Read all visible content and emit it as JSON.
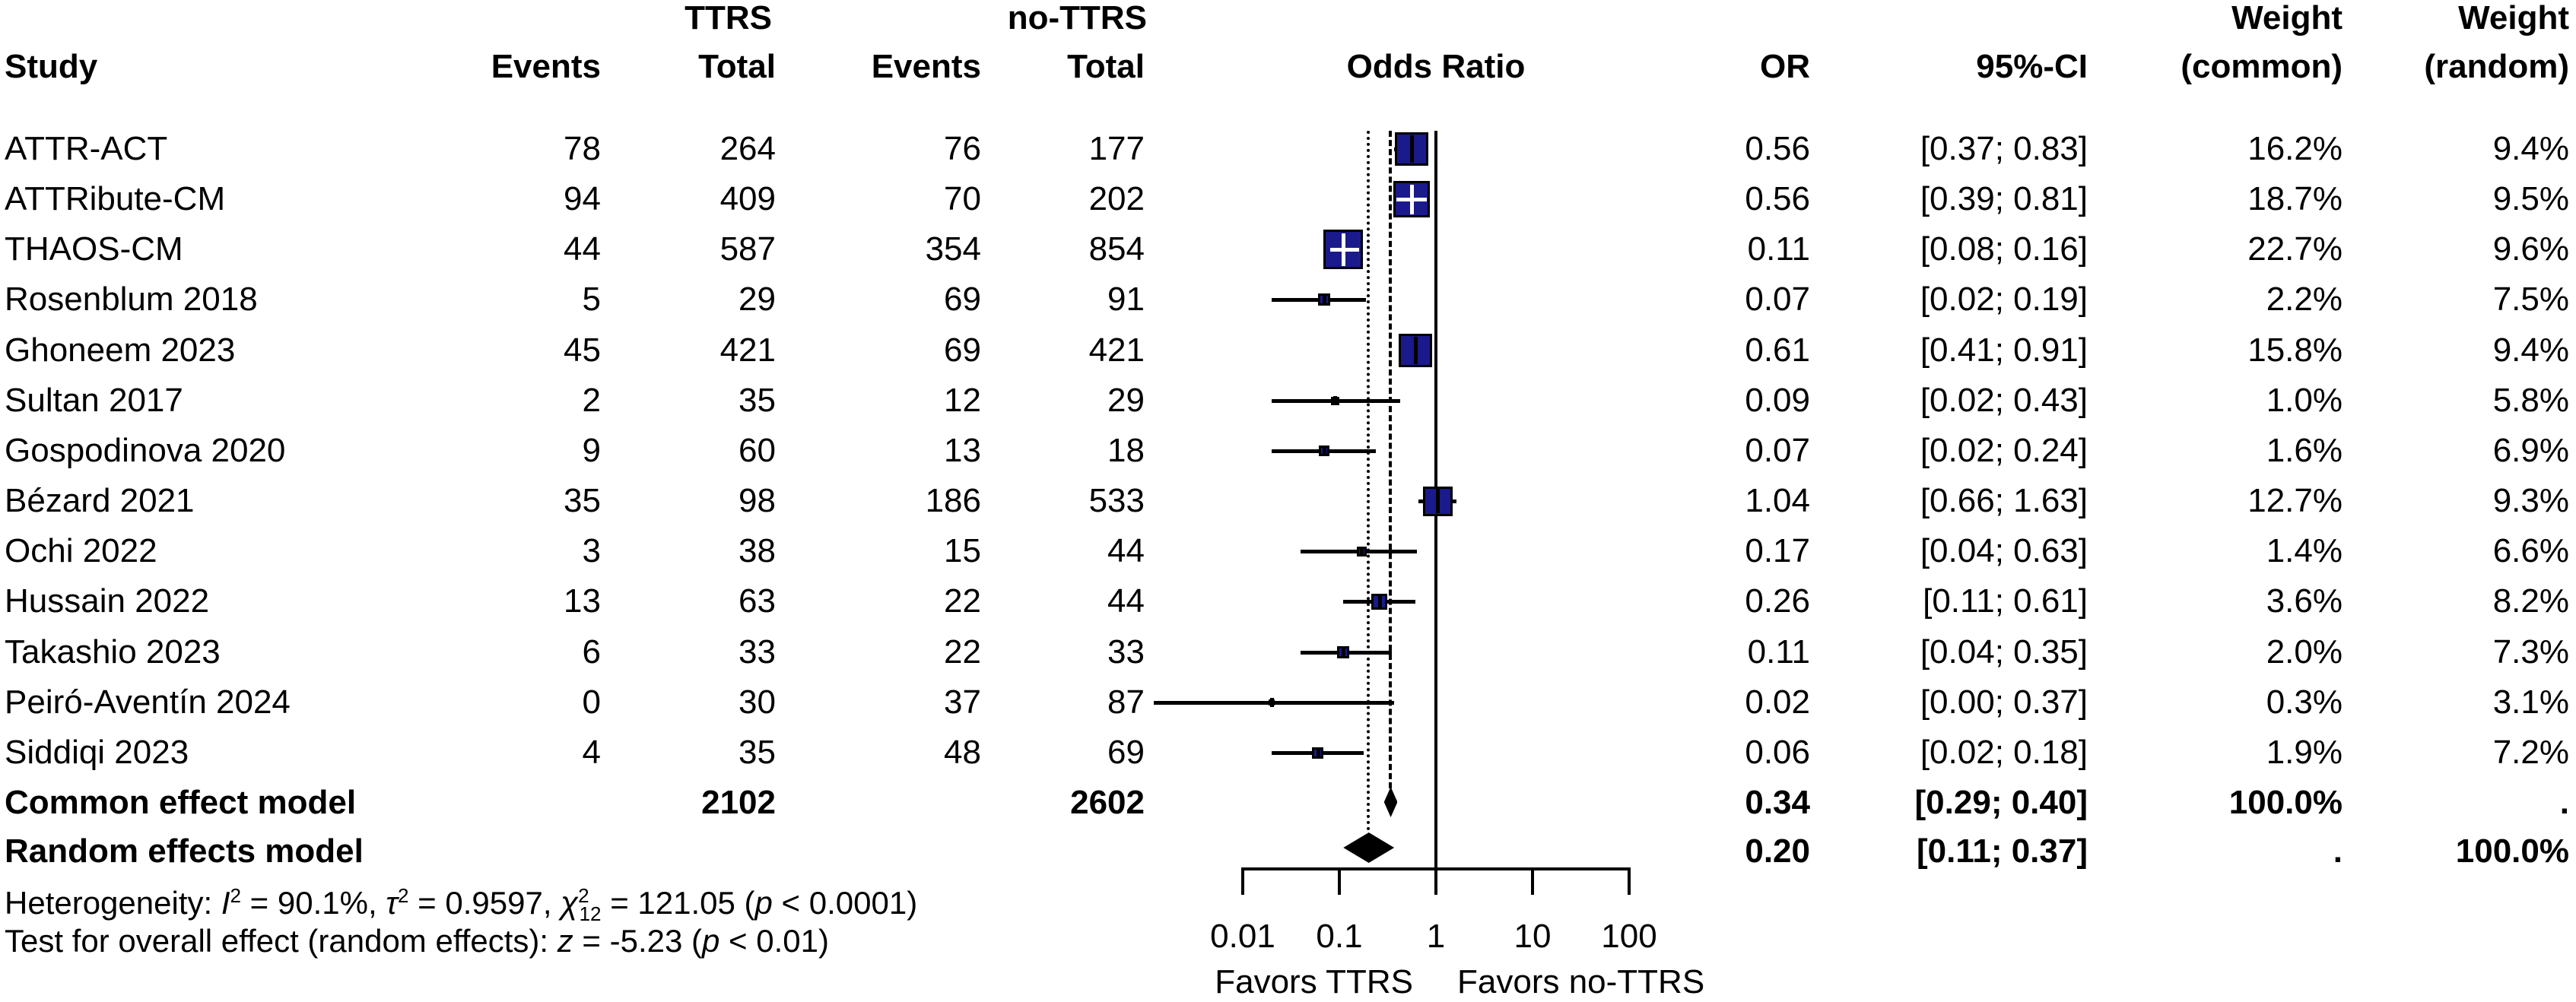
{
  "header": {
    "group_ttrs": "TTRS",
    "group_nottrs": "no-TTRS",
    "study": "Study",
    "events1": "Events",
    "total1": "Total",
    "events2": "Events",
    "total2": "Total",
    "odds_ratio_plot": "Odds Ratio",
    "or": "OR",
    "ci": "95%-CI",
    "weight_common_top": "Weight",
    "weight_random_top": "Weight",
    "weight_common_sub": "(common)",
    "weight_random_sub": "(random)"
  },
  "chart_data": {
    "type": "forest",
    "scale": "log10",
    "marker_color": "#1a1a8c",
    "axis": {
      "ticks": [
        0.01,
        0.1,
        1,
        10,
        100
      ],
      "tick_labels": [
        "0.01",
        "0.1",
        "1",
        "10",
        "100"
      ],
      "favors_left": "Favors TTRS",
      "favors_right": "Favors no-TTRS"
    },
    "guide_lines": {
      "solid_at": 1,
      "dashed_at": 0.34,
      "dotted_at": 0.2
    },
    "studies": [
      {
        "study": "ATTR-ACT",
        "events1": "78",
        "total1": "264",
        "events2": "76",
        "total2": "177",
        "or": 0.56,
        "lo": 0.37,
        "hi": 0.83,
        "or_text": "0.56",
        "ci_text": "[0.37; 0.83]",
        "weight_common": "16.2%",
        "weight_random": "9.4%",
        "weight_common_pct": 16.2
      },
      {
        "study": "ATTRibute-CM",
        "events1": "94",
        "total1": "409",
        "events2": "70",
        "total2": "202",
        "or": 0.56,
        "lo": 0.39,
        "hi": 0.81,
        "or_text": "0.56",
        "ci_text": "[0.39; 0.81]",
        "weight_common": "18.7%",
        "weight_random": "9.5%",
        "weight_common_pct": 18.7
      },
      {
        "study": "THAOS-CM",
        "events1": "44",
        "total1": "587",
        "events2": "354",
        "total2": "854",
        "or": 0.11,
        "lo": 0.08,
        "hi": 0.16,
        "or_text": "0.11",
        "ci_text": "[0.08; 0.16]",
        "weight_common": "22.7%",
        "weight_random": "9.6%",
        "weight_common_pct": 22.7
      },
      {
        "study": "Rosenblum 2018",
        "events1": "5",
        "total1": "29",
        "events2": "69",
        "total2": "91",
        "or": 0.07,
        "lo": 0.02,
        "hi": 0.19,
        "or_text": "0.07",
        "ci_text": "[0.02; 0.19]",
        "weight_common": "2.2%",
        "weight_random": "7.5%",
        "weight_common_pct": 2.2
      },
      {
        "study": "Ghoneem 2023",
        "events1": "45",
        "total1": "421",
        "events2": "69",
        "total2": "421",
        "or": 0.61,
        "lo": 0.41,
        "hi": 0.91,
        "or_text": "0.61",
        "ci_text": "[0.41; 0.91]",
        "weight_common": "15.8%",
        "weight_random": "9.4%",
        "weight_common_pct": 15.8
      },
      {
        "study": "Sultan 2017",
        "events1": "2",
        "total1": "35",
        "events2": "12",
        "total2": "29",
        "or": 0.09,
        "lo": 0.02,
        "hi": 0.43,
        "or_text": "0.09",
        "ci_text": "[0.02; 0.43]",
        "weight_common": "1.0%",
        "weight_random": "5.8%",
        "weight_common_pct": 1.0
      },
      {
        "study": "Gospodinova 2020",
        "events1": "9",
        "total1": "60",
        "events2": "13",
        "total2": "18",
        "or": 0.07,
        "lo": 0.02,
        "hi": 0.24,
        "or_text": "0.07",
        "ci_text": "[0.02; 0.24]",
        "weight_common": "1.6%",
        "weight_random": "6.9%",
        "weight_common_pct": 1.6
      },
      {
        "study": "Bézard 2021",
        "events1": "35",
        "total1": "98",
        "events2": "186",
        "total2": "533",
        "or": 1.04,
        "lo": 0.66,
        "hi": 1.63,
        "or_text": "1.04",
        "ci_text": "[0.66; 1.63]",
        "weight_common": "12.7%",
        "weight_random": "9.3%",
        "weight_common_pct": 12.7
      },
      {
        "study": "Ochi 2022",
        "events1": "3",
        "total1": "38",
        "events2": "15",
        "total2": "44",
        "or": 0.17,
        "lo": 0.04,
        "hi": 0.63,
        "or_text": "0.17",
        "ci_text": "[0.04; 0.63]",
        "weight_common": "1.4%",
        "weight_random": "6.6%",
        "weight_common_pct": 1.4
      },
      {
        "study": "Hussain 2022",
        "events1": "13",
        "total1": "63",
        "events2": "22",
        "total2": "44",
        "or": 0.26,
        "lo": 0.11,
        "hi": 0.61,
        "or_text": "0.26",
        "ci_text": "[0.11; 0.61]",
        "weight_common": "3.6%",
        "weight_random": "8.2%",
        "weight_common_pct": 3.6
      },
      {
        "study": "Takashio 2023",
        "events1": "6",
        "total1": "33",
        "events2": "22",
        "total2": "33",
        "or": 0.11,
        "lo": 0.04,
        "hi": 0.35,
        "or_text": "0.11",
        "ci_text": "[0.04; 0.35]",
        "weight_common": "2.0%",
        "weight_random": "7.3%",
        "weight_common_pct": 2.0
      },
      {
        "study": "Peiró-Aventín 2024",
        "events1": "0",
        "total1": "30",
        "events2": "37",
        "total2": "87",
        "or": 0.02,
        "lo": 0.0012,
        "hi": 0.37,
        "or_text": "0.02",
        "ci_text": "[0.00; 0.37]",
        "weight_common": "0.3%",
        "weight_random": "3.1%",
        "weight_common_pct": 0.3
      },
      {
        "study": "Siddiqi 2023",
        "events1": "4",
        "total1": "35",
        "events2": "48",
        "total2": "69",
        "or": 0.06,
        "lo": 0.02,
        "hi": 0.18,
        "or_text": "0.06",
        "ci_text": "[0.02; 0.18]",
        "weight_common": "1.9%",
        "weight_random": "7.2%",
        "weight_common_pct": 1.9
      }
    ],
    "summaries": [
      {
        "label": "Common effect model",
        "total1": "2102",
        "total2": "2602",
        "or": 0.34,
        "lo": 0.29,
        "hi": 0.4,
        "or_text": "0.34",
        "ci_text": "[0.29; 0.40]",
        "weight_common": "100.0%",
        "weight_random": ".",
        "diamond": "narrow"
      },
      {
        "label": "Random effects model",
        "total1": "",
        "total2": "",
        "or": 0.2,
        "lo": 0.11,
        "hi": 0.37,
        "or_text": "0.20",
        "ci_text": "[0.11; 0.37]",
        "weight_common": ".",
        "weight_random": "100.0%",
        "diamond": "wide"
      }
    ],
    "heterogeneity": {
      "prefix": "Heterogeneity: ",
      "i_label": "I",
      "i_sup": "2",
      "i_value": " = 90.1%, ",
      "tau_label": "τ",
      "tau_sup": "2",
      "tau_value": " = 0.9597, ",
      "chi_label": "χ",
      "chi_sup": "2",
      "chi_sub": "12",
      "chi_value": " = 121.05 (",
      "p_label": "p",
      "p_value": " < 0.0001)"
    },
    "overall_test": {
      "prefix": "Test for overall effect (random effects): ",
      "z_label": "z",
      "z_value": " = -5.23 (",
      "p_label": "p",
      "p_value": " < 0.01)"
    }
  }
}
